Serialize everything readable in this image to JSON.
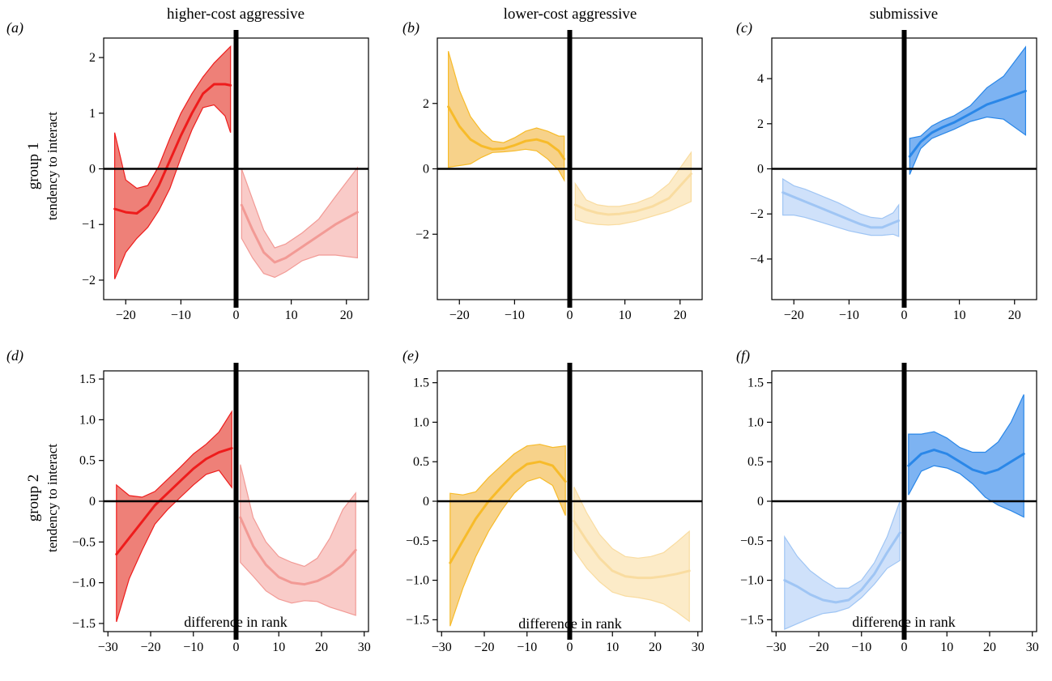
{
  "figure": {
    "column_titles": [
      "higher-cost aggressive",
      "lower-cost aggressive",
      "submissive"
    ],
    "row_titles": [
      "group 1",
      "group 2"
    ],
    "ylabel": "tendency to interact",
    "xlabel": "difference in rank"
  },
  "colors": {
    "red": {
      "line_dark": "#ee1c1c",
      "fill_dark": "#ee8078",
      "line_light": "#f29a95",
      "fill_light": "#f9cbc8"
    },
    "yellow": {
      "line_dark": "#f7bb2a",
      "fill_dark": "#f7d28a",
      "line_light": "#f9dca0",
      "fill_light": "#fcebc8"
    },
    "blue": {
      "line_dark": "#2a87e8",
      "fill_dark": "#7db3f2",
      "line_light": "#9fc5f4",
      "fill_light": "#cfe1fa"
    }
  },
  "chart_data": [
    {
      "panel": "(a)",
      "type": "line",
      "color": "red",
      "xlim": [
        -24,
        24
      ],
      "ylim": [
        -2.35,
        2.35
      ],
      "xticks": [
        -20,
        -10,
        0,
        10,
        20
      ],
      "xtick_labels": [
        "−20",
        "−10",
        "0",
        "10",
        "20"
      ],
      "yticks": [
        -2,
        -1,
        0,
        1,
        2
      ],
      "ytick_labels": [
        "−2",
        "−1",
        "0",
        "1",
        "2"
      ],
      "series": [
        {
          "side": "negative",
          "x": [
            -22,
            -20,
            -18,
            -16,
            -14,
            -12,
            -10,
            -8,
            -6,
            -4,
            -2,
            -1
          ],
          "y": [
            -0.72,
            -0.78,
            -0.8,
            -0.65,
            -0.3,
            0.15,
            0.6,
            1.0,
            1.35,
            1.52,
            1.52,
            1.5
          ],
          "lower": [
            -1.98,
            -1.5,
            -1.25,
            -1.05,
            -0.75,
            -0.35,
            0.2,
            0.7,
            1.1,
            1.15,
            0.95,
            0.65
          ],
          "upper": [
            0.65,
            -0.2,
            -0.35,
            -0.3,
            0.05,
            0.55,
            1.0,
            1.35,
            1.65,
            1.9,
            2.1,
            2.2
          ]
        },
        {
          "side": "positive",
          "x": [
            1,
            3,
            5,
            7,
            9,
            12,
            15,
            18,
            22
          ],
          "y": [
            -0.65,
            -1.1,
            -1.5,
            -1.68,
            -1.6,
            -1.4,
            -1.2,
            -1.0,
            -0.78
          ],
          "lower": [
            -1.25,
            -1.6,
            -1.88,
            -1.95,
            -1.85,
            -1.65,
            -1.55,
            -1.55,
            -1.6
          ],
          "upper": [
            0.0,
            -0.55,
            -1.1,
            -1.42,
            -1.35,
            -1.15,
            -0.9,
            -0.5,
            0.02
          ]
        }
      ]
    },
    {
      "panel": "(b)",
      "type": "line",
      "color": "yellow",
      "xlim": [
        -24,
        24
      ],
      "ylim": [
        -4.0,
        4.0
      ],
      "xticks": [
        -20,
        -10,
        0,
        10,
        20
      ],
      "xtick_labels": [
        "−20",
        "−10",
        "0",
        "10",
        "20"
      ],
      "yticks": [
        -2,
        0,
        2
      ],
      "ytick_labels": [
        "−2",
        "0",
        "2"
      ],
      "series": [
        {
          "side": "negative",
          "x": [
            -22,
            -20,
            -18,
            -16,
            -14,
            -12,
            -10,
            -8,
            -6,
            -4,
            -2,
            -1
          ],
          "y": [
            1.9,
            1.3,
            0.9,
            0.7,
            0.6,
            0.62,
            0.72,
            0.85,
            0.9,
            0.8,
            0.55,
            0.3
          ],
          "lower": [
            0.05,
            0.1,
            0.15,
            0.35,
            0.5,
            0.52,
            0.55,
            0.6,
            0.55,
            0.3,
            -0.05,
            -0.35
          ],
          "upper": [
            3.6,
            2.4,
            1.6,
            1.15,
            0.85,
            0.8,
            0.95,
            1.15,
            1.25,
            1.15,
            1.0,
            1.0
          ]
        },
        {
          "side": "positive",
          "x": [
            1,
            3,
            5,
            7,
            9,
            12,
            15,
            18,
            22
          ],
          "y": [
            -1.1,
            -1.25,
            -1.35,
            -1.4,
            -1.38,
            -1.3,
            -1.15,
            -0.9,
            -0.15
          ],
          "lower": [
            -1.55,
            -1.65,
            -1.7,
            -1.72,
            -1.7,
            -1.6,
            -1.45,
            -1.3,
            -1.0
          ],
          "upper": [
            -0.45,
            -0.95,
            -1.1,
            -1.15,
            -1.15,
            -1.05,
            -0.85,
            -0.45,
            0.5
          ]
        }
      ]
    },
    {
      "panel": "(c)",
      "type": "line",
      "color": "blue",
      "xlim": [
        -24,
        24
      ],
      "ylim": [
        -5.8,
        5.8
      ],
      "xticks": [
        -20,
        -10,
        0,
        10,
        20
      ],
      "xtick_labels": [
        "−20",
        "−10",
        "0",
        "10",
        "20"
      ],
      "yticks": [
        -4,
        -2,
        0,
        2,
        4
      ],
      "ytick_labels": [
        "−4",
        "−2",
        "0",
        "2",
        "4"
      ],
      "series": [
        {
          "side": "negative",
          "x": [
            -22,
            -20,
            -18,
            -16,
            -14,
            -12,
            -10,
            -8,
            -6,
            -4,
            -2,
            -1
          ],
          "y": [
            -1.05,
            -1.25,
            -1.45,
            -1.65,
            -1.85,
            -2.05,
            -2.25,
            -2.45,
            -2.6,
            -2.6,
            -2.4,
            -2.3
          ],
          "lower": [
            -2.05,
            -2.05,
            -2.15,
            -2.3,
            -2.45,
            -2.6,
            -2.75,
            -2.85,
            -2.95,
            -2.95,
            -2.9,
            -3.0
          ],
          "upper": [
            -0.45,
            -0.75,
            -0.9,
            -1.1,
            -1.3,
            -1.5,
            -1.75,
            -2.0,
            -2.15,
            -2.2,
            -1.95,
            -1.6
          ]
        },
        {
          "side": "positive",
          "x": [
            1,
            3,
            5,
            7,
            9,
            12,
            15,
            18,
            22
          ],
          "y": [
            0.55,
            1.2,
            1.6,
            1.85,
            2.05,
            2.45,
            2.85,
            3.1,
            3.45
          ],
          "lower": [
            -0.25,
            0.9,
            1.35,
            1.55,
            1.75,
            2.1,
            2.3,
            2.2,
            1.5
          ],
          "upper": [
            1.35,
            1.45,
            1.9,
            2.15,
            2.35,
            2.8,
            3.6,
            4.1,
            5.4
          ]
        }
      ]
    },
    {
      "panel": "(d)",
      "type": "line",
      "color": "red",
      "xlim": [
        -31,
        31
      ],
      "ylim": [
        -1.6,
        1.6
      ],
      "xticks": [
        -30,
        -20,
        -10,
        0,
        10,
        20,
        30
      ],
      "xtick_labels": [
        "−30",
        "−20",
        "−10",
        "0",
        "10",
        "20",
        "30"
      ],
      "yticks": [
        -1.5,
        -1.0,
        -0.5,
        0,
        0.5,
        1.0,
        1.5
      ],
      "ytick_labels": [
        "−1.5",
        "−1.0",
        "−0.5",
        "0",
        "0.5",
        "1.0",
        "1.5"
      ],
      "series": [
        {
          "side": "negative",
          "x": [
            -28,
            -25,
            -22,
            -19,
            -16,
            -13,
            -10,
            -7,
            -4,
            -1
          ],
          "y": [
            -0.65,
            -0.45,
            -0.25,
            -0.05,
            0.1,
            0.25,
            0.4,
            0.52,
            0.6,
            0.65
          ],
          "lower": [
            -1.48,
            -0.95,
            -0.6,
            -0.28,
            -0.1,
            0.05,
            0.2,
            0.33,
            0.38,
            0.17
          ],
          "upper": [
            0.2,
            0.07,
            0.05,
            0.12,
            0.27,
            0.42,
            0.58,
            0.7,
            0.85,
            1.1
          ]
        },
        {
          "side": "positive",
          "x": [
            1,
            4,
            7,
            10,
            13,
            16,
            19,
            22,
            25,
            28
          ],
          "y": [
            -0.2,
            -0.55,
            -0.78,
            -0.93,
            -1.0,
            -1.02,
            -0.98,
            -0.9,
            -0.78,
            -0.6
          ],
          "lower": [
            -0.75,
            -0.92,
            -1.1,
            -1.2,
            -1.25,
            -1.22,
            -1.23,
            -1.3,
            -1.35,
            -1.4
          ],
          "upper": [
            0.45,
            -0.2,
            -0.5,
            -0.68,
            -0.75,
            -0.8,
            -0.7,
            -0.45,
            -0.1,
            0.1
          ]
        }
      ]
    },
    {
      "panel": "(e)",
      "type": "line",
      "color": "yellow",
      "xlim": [
        -31,
        31
      ],
      "ylim": [
        -1.65,
        1.65
      ],
      "xticks": [
        -30,
        -20,
        -10,
        0,
        10,
        20,
        30
      ],
      "xtick_labels": [
        "−30",
        "−20",
        "−10",
        "0",
        "10",
        "20",
        "30"
      ],
      "yticks": [
        -1.5,
        -1.0,
        -0.5,
        0,
        0.5,
        1.0,
        1.5
      ],
      "ytick_labels": [
        "−1.5",
        "−1.0",
        "−0.5",
        "0",
        "0.5",
        "1.0",
        "1.5"
      ],
      "series": [
        {
          "side": "negative",
          "x": [
            -28,
            -25,
            -22,
            -19,
            -16,
            -13,
            -10,
            -7,
            -4,
            -1
          ],
          "y": [
            -0.78,
            -0.5,
            -0.22,
            0.0,
            0.18,
            0.35,
            0.47,
            0.5,
            0.45,
            0.25
          ],
          "lower": [
            -1.58,
            -1.1,
            -0.7,
            -0.38,
            -0.12,
            0.1,
            0.25,
            0.3,
            0.2,
            -0.18
          ],
          "upper": [
            0.1,
            0.08,
            0.12,
            0.3,
            0.45,
            0.6,
            0.7,
            0.72,
            0.68,
            0.7
          ]
        },
        {
          "side": "positive",
          "x": [
            1,
            4,
            7,
            10,
            13,
            16,
            19,
            22,
            25,
            28
          ],
          "y": [
            -0.25,
            -0.5,
            -0.72,
            -0.88,
            -0.95,
            -0.97,
            -0.97,
            -0.95,
            -0.92,
            -0.88
          ],
          "lower": [
            -0.62,
            -0.85,
            -1.02,
            -1.15,
            -1.2,
            -1.22,
            -1.25,
            -1.3,
            -1.4,
            -1.52
          ],
          "upper": [
            0.18,
            -0.15,
            -0.42,
            -0.6,
            -0.7,
            -0.72,
            -0.7,
            -0.65,
            -0.52,
            -0.38
          ]
        }
      ]
    },
    {
      "panel": "(f)",
      "type": "line",
      "color": "blue",
      "xlim": [
        -31,
        31
      ],
      "ylim": [
        -1.65,
        1.65
      ],
      "xticks": [
        -30,
        -20,
        -10,
        0,
        10,
        20,
        30
      ],
      "xtick_labels": [
        "−30",
        "−20",
        "−10",
        "0",
        "10",
        "20",
        "30"
      ],
      "yticks": [
        -1.5,
        -1.0,
        -0.5,
        0,
        0.5,
        1.0,
        1.5
      ],
      "ytick_labels": [
        "−1.5",
        "−1.0",
        "−0.5",
        "0",
        "0.5",
        "1.0",
        "1.5"
      ],
      "series": [
        {
          "side": "negative",
          "x": [
            -28,
            -25,
            -22,
            -19,
            -16,
            -13,
            -10,
            -7,
            -4,
            -1
          ],
          "y": [
            -1.0,
            -1.08,
            -1.18,
            -1.25,
            -1.28,
            -1.25,
            -1.12,
            -0.92,
            -0.65,
            -0.4
          ],
          "lower": [
            -1.62,
            -1.55,
            -1.48,
            -1.42,
            -1.4,
            -1.35,
            -1.22,
            -1.05,
            -0.85,
            -0.75
          ],
          "upper": [
            -0.45,
            -0.7,
            -0.88,
            -1.0,
            -1.1,
            -1.1,
            -1.0,
            -0.78,
            -0.45,
            0.0
          ]
        },
        {
          "side": "positive",
          "x": [
            1,
            4,
            7,
            10,
            13,
            16,
            19,
            22,
            25,
            28
          ],
          "y": [
            0.45,
            0.6,
            0.65,
            0.6,
            0.5,
            0.4,
            0.35,
            0.4,
            0.5,
            0.6
          ],
          "lower": [
            0.08,
            0.38,
            0.45,
            0.42,
            0.35,
            0.22,
            0.05,
            -0.05,
            -0.12,
            -0.2
          ],
          "upper": [
            0.85,
            0.85,
            0.88,
            0.8,
            0.68,
            0.62,
            0.62,
            0.75,
            1.0,
            1.35
          ]
        }
      ]
    }
  ]
}
